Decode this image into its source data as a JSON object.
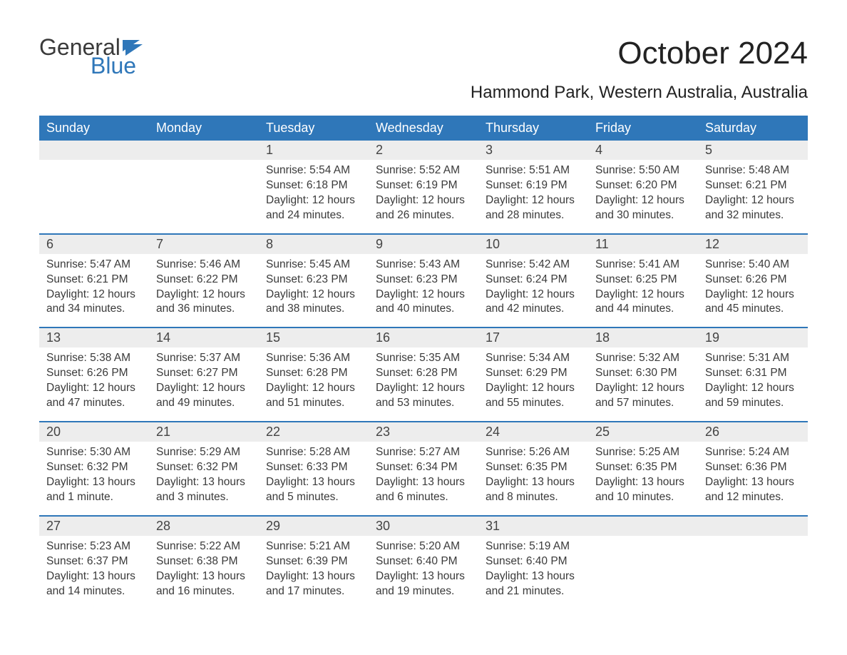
{
  "logo": {
    "word1": "General",
    "word2": "Blue"
  },
  "title": "October 2024",
  "subtitle": "Hammond Park, Western Australia, Australia",
  "colors": {
    "header_bg": "#2f77b9",
    "header_text": "#ffffff",
    "daynum_bg": "#ededed",
    "text": "#3a3a3a",
    "logo_blue": "#2f77b9",
    "background": "#ffffff"
  },
  "typography": {
    "title_fontsize": 44,
    "subtitle_fontsize": 24,
    "header_fontsize": 18,
    "daynum_fontsize": 18,
    "body_fontsize": 15.5
  },
  "day_labels": [
    "Sunday",
    "Monday",
    "Tuesday",
    "Wednesday",
    "Thursday",
    "Friday",
    "Saturday"
  ],
  "weeks": [
    [
      {
        "n": "",
        "sunrise": "",
        "sunset": "",
        "daylight": ""
      },
      {
        "n": "",
        "sunrise": "",
        "sunset": "",
        "daylight": ""
      },
      {
        "n": "1",
        "sunrise": "Sunrise: 5:54 AM",
        "sunset": "Sunset: 6:18 PM",
        "daylight": "Daylight: 12 hours and 24 minutes."
      },
      {
        "n": "2",
        "sunrise": "Sunrise: 5:52 AM",
        "sunset": "Sunset: 6:19 PM",
        "daylight": "Daylight: 12 hours and 26 minutes."
      },
      {
        "n": "3",
        "sunrise": "Sunrise: 5:51 AM",
        "sunset": "Sunset: 6:19 PM",
        "daylight": "Daylight: 12 hours and 28 minutes."
      },
      {
        "n": "4",
        "sunrise": "Sunrise: 5:50 AM",
        "sunset": "Sunset: 6:20 PM",
        "daylight": "Daylight: 12 hours and 30 minutes."
      },
      {
        "n": "5",
        "sunrise": "Sunrise: 5:48 AM",
        "sunset": "Sunset: 6:21 PM",
        "daylight": "Daylight: 12 hours and 32 minutes."
      }
    ],
    [
      {
        "n": "6",
        "sunrise": "Sunrise: 5:47 AM",
        "sunset": "Sunset: 6:21 PM",
        "daylight": "Daylight: 12 hours and 34 minutes."
      },
      {
        "n": "7",
        "sunrise": "Sunrise: 5:46 AM",
        "sunset": "Sunset: 6:22 PM",
        "daylight": "Daylight: 12 hours and 36 minutes."
      },
      {
        "n": "8",
        "sunrise": "Sunrise: 5:45 AM",
        "sunset": "Sunset: 6:23 PM",
        "daylight": "Daylight: 12 hours and 38 minutes."
      },
      {
        "n": "9",
        "sunrise": "Sunrise: 5:43 AM",
        "sunset": "Sunset: 6:23 PM",
        "daylight": "Daylight: 12 hours and 40 minutes."
      },
      {
        "n": "10",
        "sunrise": "Sunrise: 5:42 AM",
        "sunset": "Sunset: 6:24 PM",
        "daylight": "Daylight: 12 hours and 42 minutes."
      },
      {
        "n": "11",
        "sunrise": "Sunrise: 5:41 AM",
        "sunset": "Sunset: 6:25 PM",
        "daylight": "Daylight: 12 hours and 44 minutes."
      },
      {
        "n": "12",
        "sunrise": "Sunrise: 5:40 AM",
        "sunset": "Sunset: 6:26 PM",
        "daylight": "Daylight: 12 hours and 45 minutes."
      }
    ],
    [
      {
        "n": "13",
        "sunrise": "Sunrise: 5:38 AM",
        "sunset": "Sunset: 6:26 PM",
        "daylight": "Daylight: 12 hours and 47 minutes."
      },
      {
        "n": "14",
        "sunrise": "Sunrise: 5:37 AM",
        "sunset": "Sunset: 6:27 PM",
        "daylight": "Daylight: 12 hours and 49 minutes."
      },
      {
        "n": "15",
        "sunrise": "Sunrise: 5:36 AM",
        "sunset": "Sunset: 6:28 PM",
        "daylight": "Daylight: 12 hours and 51 minutes."
      },
      {
        "n": "16",
        "sunrise": "Sunrise: 5:35 AM",
        "sunset": "Sunset: 6:28 PM",
        "daylight": "Daylight: 12 hours and 53 minutes."
      },
      {
        "n": "17",
        "sunrise": "Sunrise: 5:34 AM",
        "sunset": "Sunset: 6:29 PM",
        "daylight": "Daylight: 12 hours and 55 minutes."
      },
      {
        "n": "18",
        "sunrise": "Sunrise: 5:32 AM",
        "sunset": "Sunset: 6:30 PM",
        "daylight": "Daylight: 12 hours and 57 minutes."
      },
      {
        "n": "19",
        "sunrise": "Sunrise: 5:31 AM",
        "sunset": "Sunset: 6:31 PM",
        "daylight": "Daylight: 12 hours and 59 minutes."
      }
    ],
    [
      {
        "n": "20",
        "sunrise": "Sunrise: 5:30 AM",
        "sunset": "Sunset: 6:32 PM",
        "daylight": "Daylight: 13 hours and 1 minute."
      },
      {
        "n": "21",
        "sunrise": "Sunrise: 5:29 AM",
        "sunset": "Sunset: 6:32 PM",
        "daylight": "Daylight: 13 hours and 3 minutes."
      },
      {
        "n": "22",
        "sunrise": "Sunrise: 5:28 AM",
        "sunset": "Sunset: 6:33 PM",
        "daylight": "Daylight: 13 hours and 5 minutes."
      },
      {
        "n": "23",
        "sunrise": "Sunrise: 5:27 AM",
        "sunset": "Sunset: 6:34 PM",
        "daylight": "Daylight: 13 hours and 6 minutes."
      },
      {
        "n": "24",
        "sunrise": "Sunrise: 5:26 AM",
        "sunset": "Sunset: 6:35 PM",
        "daylight": "Daylight: 13 hours and 8 minutes."
      },
      {
        "n": "25",
        "sunrise": "Sunrise: 5:25 AM",
        "sunset": "Sunset: 6:35 PM",
        "daylight": "Daylight: 13 hours and 10 minutes."
      },
      {
        "n": "26",
        "sunrise": "Sunrise: 5:24 AM",
        "sunset": "Sunset: 6:36 PM",
        "daylight": "Daylight: 13 hours and 12 minutes."
      }
    ],
    [
      {
        "n": "27",
        "sunrise": "Sunrise: 5:23 AM",
        "sunset": "Sunset: 6:37 PM",
        "daylight": "Daylight: 13 hours and 14 minutes."
      },
      {
        "n": "28",
        "sunrise": "Sunrise: 5:22 AM",
        "sunset": "Sunset: 6:38 PM",
        "daylight": "Daylight: 13 hours and 16 minutes."
      },
      {
        "n": "29",
        "sunrise": "Sunrise: 5:21 AM",
        "sunset": "Sunset: 6:39 PM",
        "daylight": "Daylight: 13 hours and 17 minutes."
      },
      {
        "n": "30",
        "sunrise": "Sunrise: 5:20 AM",
        "sunset": "Sunset: 6:40 PM",
        "daylight": "Daylight: 13 hours and 19 minutes."
      },
      {
        "n": "31",
        "sunrise": "Sunrise: 5:19 AM",
        "sunset": "Sunset: 6:40 PM",
        "daylight": "Daylight: 13 hours and 21 minutes."
      },
      {
        "n": "",
        "sunrise": "",
        "sunset": "",
        "daylight": ""
      },
      {
        "n": "",
        "sunrise": "",
        "sunset": "",
        "daylight": ""
      }
    ]
  ]
}
